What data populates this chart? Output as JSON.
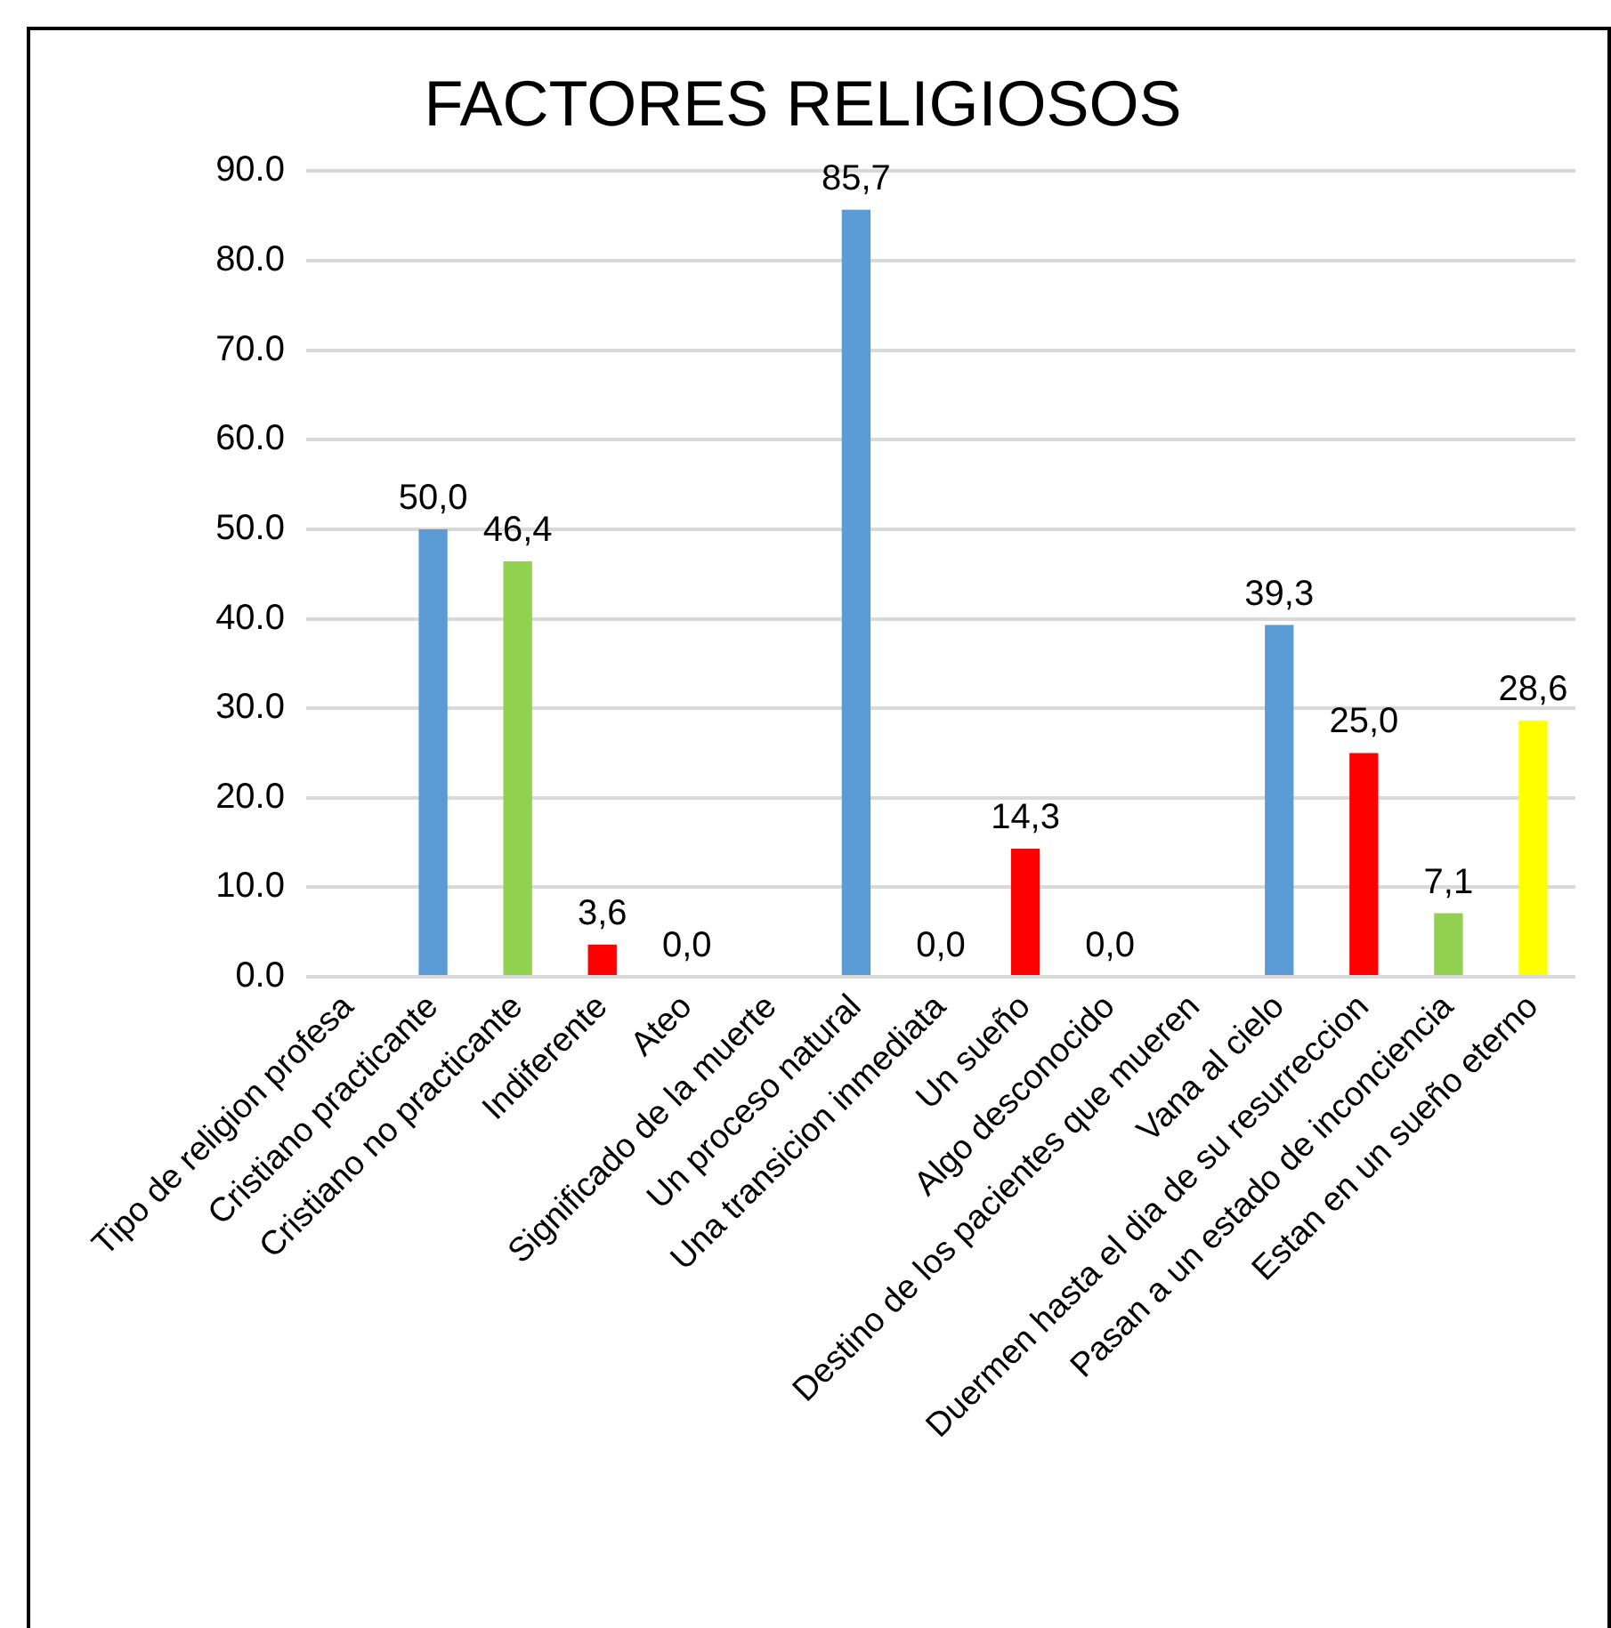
{
  "chart_data": {
    "type": "bar",
    "title": "FACTORES RELIGIOSOS",
    "categories": [
      "Tipo de religion profesa",
      "Cristiano practicante",
      "Cristiano no practicante",
      "Indiferente",
      "Ateo",
      "Significado de la muerte",
      "Un proceso natural",
      "Una transicion inmediata",
      "Un sueño",
      "Algo desconocido",
      "Destino de los pacientes que mueren",
      "Vana al cielo",
      "Duermen hasta el dia de su resurreccion",
      "Pasan a un estado de inconciencia",
      "Estan en un sueño eterno"
    ],
    "values": [
      null,
      50.0,
      46.4,
      3.6,
      0.0,
      null,
      85.7,
      0.0,
      14.3,
      0.0,
      null,
      39.3,
      25.0,
      7.1,
      28.6
    ],
    "colors": [
      null,
      "#5b9bd5",
      "#92d050",
      "#ff0000",
      "#ff0000",
      null,
      "#5b9bd5",
      "#ff0000",
      "#ff0000",
      "#ff0000",
      null,
      "#5b9bd5",
      "#ff0000",
      "#92d050",
      "#ffff00"
    ],
    "value_labels": [
      null,
      "50,0",
      "46,4",
      "3,6",
      "0,0",
      null,
      "85,7",
      "0,0",
      "14,3",
      "0,0",
      null,
      "39,3",
      "25,0",
      "7,1",
      "28,6"
    ],
    "ylim": [
      0,
      90
    ],
    "yticks": [
      {
        "value": 0,
        "label": "0.0"
      },
      {
        "value": 10,
        "label": "10.0"
      },
      {
        "value": 20,
        "label": "20.0"
      },
      {
        "value": 30,
        "label": "30.0"
      },
      {
        "value": 40,
        "label": "40.0"
      },
      {
        "value": 50,
        "label": "50.0"
      },
      {
        "value": 60,
        "label": "60.0"
      },
      {
        "value": 70,
        "label": "70.0"
      },
      {
        "value": 80,
        "label": "80.0"
      },
      {
        "value": 90,
        "label": "90.0"
      }
    ],
    "grid": "y"
  }
}
